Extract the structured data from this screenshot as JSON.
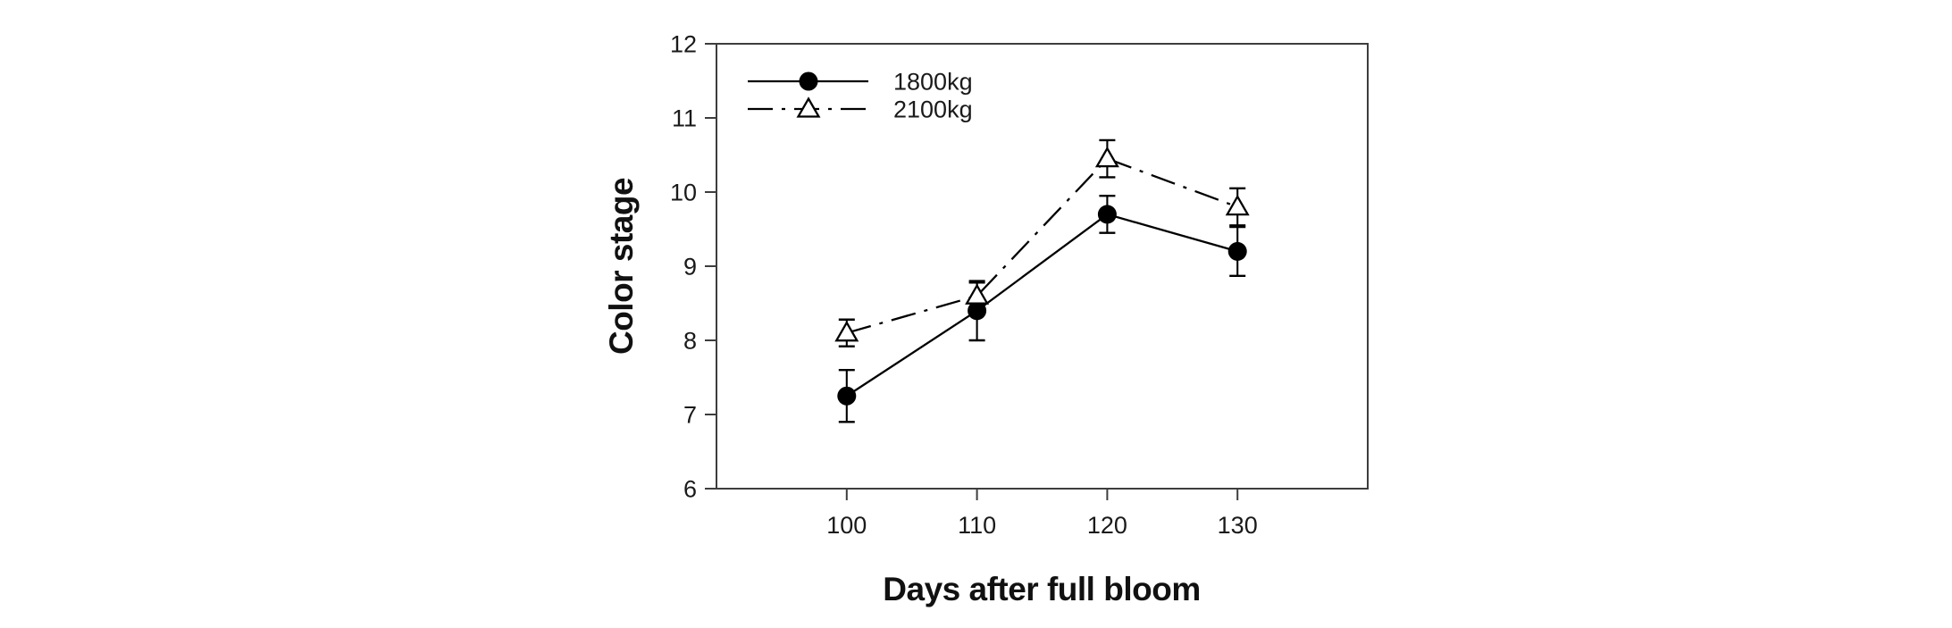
{
  "figure": {
    "background": "#ffffff",
    "text_color": "#111111",
    "frame_color": "#3d3d3d",
    "series_color": "#000000"
  },
  "chart_data": {
    "type": "line",
    "title": "",
    "xlabel": "Days after full bloom",
    "ylabel": "Color stage",
    "x": [
      100,
      110,
      120,
      130
    ],
    "xlim": [
      90,
      140
    ],
    "ylim": [
      6,
      12
    ],
    "xticks": [
      100,
      110,
      120,
      130
    ],
    "yticks": [
      6,
      7,
      8,
      9,
      10,
      11,
      12
    ],
    "grid": false,
    "error_bars": true,
    "legend_position": "top-left-inside",
    "series": [
      {
        "name": "1800kg",
        "marker": "filled-circle",
        "line_style": "solid",
        "color": "#000000",
        "values": [
          7.25,
          8.4,
          9.7,
          9.2
        ],
        "errors": [
          0.35,
          0.4,
          0.25,
          0.33
        ]
      },
      {
        "name": "2100kg",
        "marker": "open-triangle",
        "line_style": "dash-dot",
        "color": "#000000",
        "values": [
          8.1,
          8.6,
          10.45,
          9.8
        ],
        "errors": [
          0.18,
          0.18,
          0.25,
          0.25
        ]
      }
    ]
  }
}
